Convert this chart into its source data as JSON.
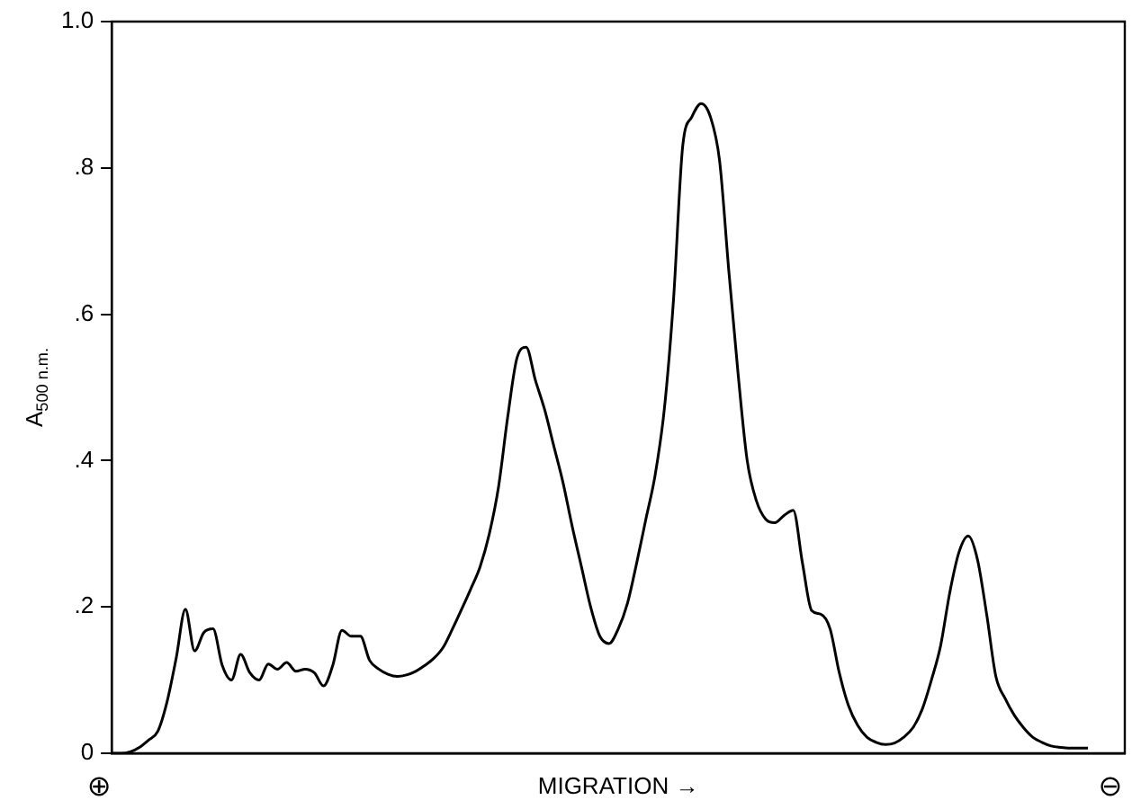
{
  "chart_data": {
    "type": "line",
    "xlabel": "MIGRATION →",
    "ylabel": "A$_{500 n.m.}$",
    "annotations": [
      "⊕",
      "⊖"
    ],
    "categories": [
      null,
      null,
      null,
      null,
      null,
      null,
      null,
      null,
      null,
      null,
      null,
      null,
      null,
      null,
      null,
      null,
      null,
      null,
      null,
      null,
      null,
      null,
      null,
      null,
      null,
      null,
      null,
      null,
      null,
      null,
      null,
      null,
      null,
      null,
      null,
      null,
      null,
      null,
      null,
      null,
      null,
      null,
      null,
      null,
      null,
      null,
      null,
      null,
      null,
      null,
      null,
      null,
      null,
      null,
      null,
      null,
      null,
      null,
      null,
      null,
      null,
      null,
      null,
      null,
      null,
      null,
      null,
      null,
      null,
      null,
      null,
      null,
      null,
      null,
      null,
      null,
      null,
      null,
      null,
      null,
      null,
      null,
      null,
      null,
      null,
      null,
      null,
      null,
      null,
      null,
      null,
      null,
      null,
      null,
      null,
      null,
      null,
      null,
      null,
      null,
      null,
      null,
      null,
      null,
      null,
      null,
      null,
      null,
      null,
      null,
      null
    ],
    "series": [
      {
        "color": "#000000",
        "values": [
          0,
          0,
          0.002,
          0.008,
          0.018,
          0.03,
          0.07,
          0.13,
          0.197,
          0.14,
          0.165,
          0.17,
          0.12,
          0.1,
          0.135,
          0.11,
          0.1,
          0.122,
          0.115,
          0.124,
          0.112,
          0.115,
          0.11,
          0.092,
          0.12,
          0.168,
          0.16,
          0.16,
          0.127,
          0.115,
          0.108,
          0.105,
          0.107,
          0.112,
          0.12,
          0.13,
          0.145,
          0.17,
          0.197,
          0.225,
          0.255,
          0.3,
          0.364,
          0.46,
          0.54,
          0.555,
          0.51,
          0.47,
          0.42,
          0.37,
          0.31,
          0.255,
          0.2,
          0.16,
          0.15,
          0.17,
          0.205,
          0.26,
          0.32,
          0.38,
          0.47,
          0.62,
          0.83,
          0.87,
          0.888,
          0.87,
          0.81,
          0.66,
          0.52,
          0.4,
          0.345,
          0.32,
          0.315,
          0.325,
          0.332,
          0.26,
          0.195,
          0.19,
          0.17,
          0.11,
          0.065,
          0.038,
          0.022,
          0.015,
          0.012,
          0.014,
          0.022,
          0.035,
          0.06,
          0.1,
          0.147,
          0.22,
          0.275,
          0.297,
          0.265,
          0.19,
          0.105,
          0.075,
          0.052,
          0.035,
          0.022,
          0.015,
          0.01,
          0.008,
          0.007,
          0.007,
          0.007,
          null,
          null,
          null,
          null
        ]
      }
    ],
    "ylim": [
      0,
      1.0
    ],
    "yticks": [
      {
        "value": 0,
        "label": "0"
      },
      {
        "value": 0.2,
        "label": ".2"
      },
      {
        "value": 0.4,
        "label": ".4"
      },
      {
        "value": 0.6,
        "label": ".6"
      },
      {
        "value": 0.8,
        "label": ".8"
      },
      {
        "value": 1.0,
        "label": "1.0"
      }
    ],
    "tick_labels": "y",
    "grid": false,
    "legend": false,
    "marker": "none",
    "line_style": "solid"
  }
}
